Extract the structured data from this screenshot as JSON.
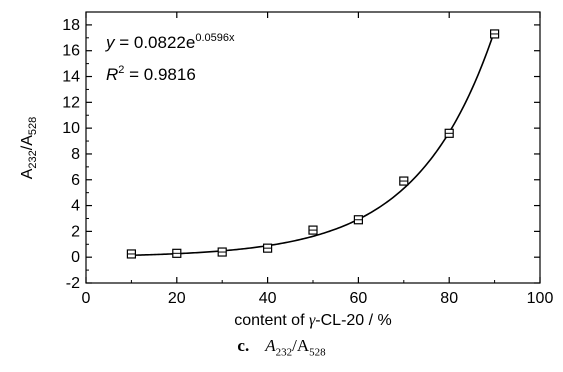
{
  "chart_data": {
    "type": "scatter",
    "x": [
      10,
      20,
      30,
      40,
      50,
      60,
      70,
      80,
      90
    ],
    "y": [
      0.25,
      0.3,
      0.4,
      0.7,
      2.1,
      2.9,
      5.9,
      9.6,
      17.3
    ],
    "fit": {
      "model": "exponential",
      "a": 0.0822,
      "b": 0.0596
    },
    "xlim": [
      0,
      100
    ],
    "ylim": [
      -2,
      19
    ],
    "xticks": [
      0,
      20,
      40,
      60,
      80,
      100
    ],
    "yticks": [
      -2,
      0,
      2,
      4,
      6,
      8,
      10,
      12,
      14,
      16,
      18
    ],
    "xlabel_prefix": "content of ",
    "xlabel_symbol": "γ",
    "xlabel_suffix": "-CL-20 / %",
    "ylabel_a": "A",
    "ylabel_sub1": "232",
    "ylabel_sep": "/A",
    "ylabel_sub2": "528",
    "equation_y": "y",
    "equation_eq": " = 0.0822e",
    "equation_exp": "0.0596x",
    "r2_r": "R",
    "r2_sup": "2",
    "r2_value": " = 0.9816",
    "marker_color": "#000000"
  },
  "caption": {
    "label": "c.",
    "a": "A",
    "sub1": "232",
    "sep": "/A",
    "sub2": "528"
  }
}
